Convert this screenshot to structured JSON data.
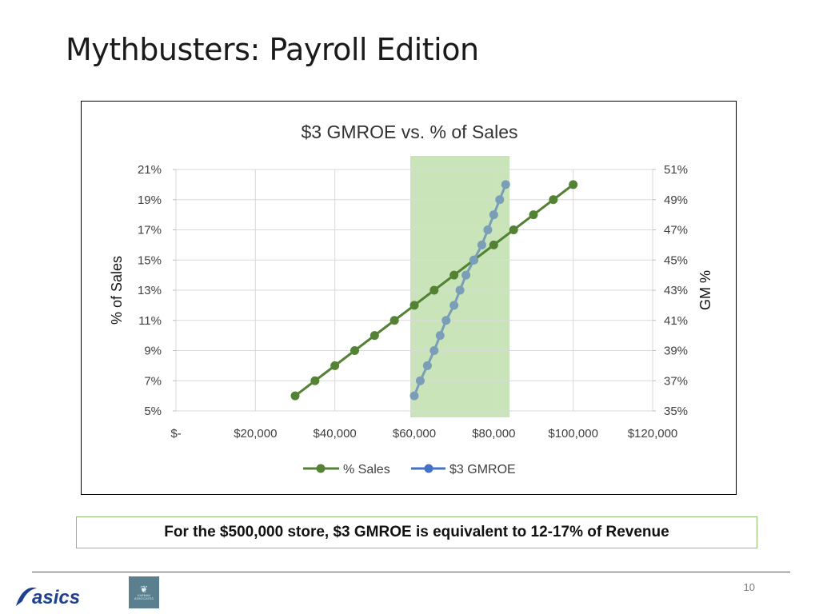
{
  "slide": {
    "title": "Mythbusters: Payroll Edition",
    "callout": "For the $500,000 store, $3 GMROE is equivalent to 12-17% of Revenue",
    "page_number": "10",
    "logo_text": "asics",
    "partner_logo_text": "KARMAN ASSOCIATES"
  },
  "colors": {
    "sales_series": "#548235",
    "gmroe_series": "#7a9db8",
    "highlight_band": "#c9e4b8",
    "grid": "#d9d9d9",
    "axis_text": "#404040",
    "asics_blue": "#1f3f91"
  },
  "chart_data": {
    "type": "line",
    "title": "$3 GMROE vs. % of Sales",
    "xlabel": "",
    "ylabel": "% of Sales",
    "ylabel_right": "GM %",
    "xlim": [
      0,
      120000
    ],
    "ylim": [
      5,
      21
    ],
    "ylim_right": [
      35,
      51
    ],
    "x_ticks": [
      "$-",
      "$20,000",
      "$40,000",
      "$60,000",
      "$80,000",
      "$100,000",
      "$120,000"
    ],
    "y_ticks": [
      "5%",
      "7%",
      "9%",
      "11%",
      "13%",
      "15%",
      "17%",
      "19%",
      "21%"
    ],
    "y_ticks_right": [
      "35%",
      "37%",
      "39%",
      "41%",
      "43%",
      "45%",
      "47%",
      "49%",
      "51%"
    ],
    "grid": true,
    "legend_position": "bottom",
    "highlight_band_x": [
      59000,
      84000
    ],
    "series": [
      {
        "name": "% Sales",
        "axis": "left",
        "x": [
          30000,
          35000,
          40000,
          45000,
          50000,
          55000,
          60000,
          65000,
          70000,
          75000,
          80000,
          85000,
          90000,
          95000,
          100000
        ],
        "y": [
          6,
          7,
          8,
          9,
          10,
          11,
          12,
          13,
          14,
          15,
          16,
          17,
          18,
          19,
          20
        ]
      },
      {
        "name": "$3 GMROE",
        "axis": "right",
        "x": [
          60000,
          61500,
          63300,
          65000,
          66500,
          68000,
          70000,
          71500,
          73000,
          75000,
          77000,
          78500,
          80000,
          81500,
          83000
        ],
        "y": [
          36,
          37,
          38,
          39,
          40,
          41,
          42,
          43,
          44,
          45,
          46,
          47,
          48,
          49,
          50
        ]
      }
    ]
  }
}
